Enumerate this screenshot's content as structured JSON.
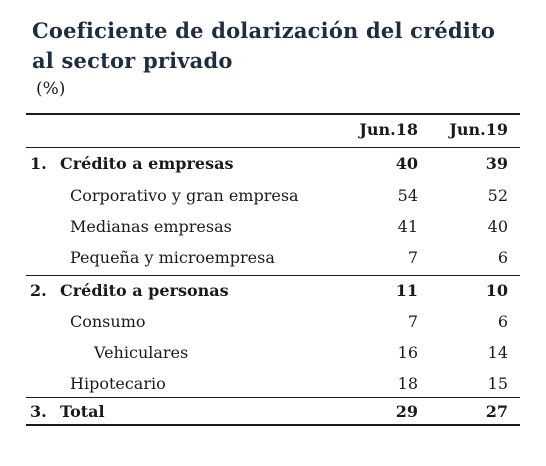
{
  "title": "Coeficiente de dolarización del crédito al sector privado",
  "unit": "(%)",
  "columns": [
    "Jun.18",
    "Jun.19"
  ],
  "rows": [
    {
      "index": "1.",
      "label": "Crédito a empresas",
      "v1": "40",
      "v2": "39"
    },
    {
      "index": "",
      "label": "Corporativo y gran empresa",
      "v1": "54",
      "v2": "52"
    },
    {
      "index": "",
      "label": "Medianas empresas",
      "v1": "41",
      "v2": "40"
    },
    {
      "index": "",
      "label": "Pequeña y microempresa",
      "v1": "7",
      "v2": "6"
    },
    {
      "index": "2.",
      "label": "Crédito a personas",
      "v1": "11",
      "v2": "10"
    },
    {
      "index": "",
      "label": "Consumo",
      "v1": "7",
      "v2": "6"
    },
    {
      "index": "",
      "label": "Vehiculares",
      "v1": "16",
      "v2": "14"
    },
    {
      "index": "",
      "label": "Hipotecario",
      "v1": "18",
      "v2": "15"
    },
    {
      "index": "3.",
      "label": "Total",
      "v1": "29",
      "v2": "27"
    }
  ]
}
